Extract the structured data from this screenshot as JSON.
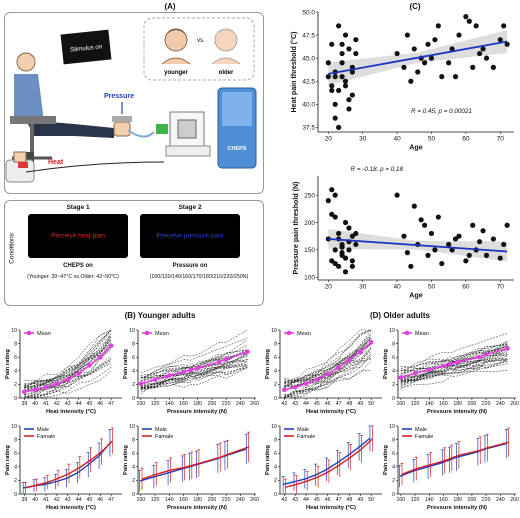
{
  "panel_labels": {
    "a": "(A)",
    "b": "(B) Younger adults",
    "c": "(C)",
    "d": "(D) Older adults"
  },
  "panel_a": {
    "stimulus_screen": "Stimulus on",
    "younger": "younger",
    "vs": "vs.",
    "older": "older",
    "pressure": "Pressure",
    "heat": "Heat",
    "device": "CHEPS",
    "conditions": "Conditions",
    "stage1": {
      "title": "Stage 1",
      "screen": "Perceive heat pain",
      "device": "CHEPS on"
    },
    "stage2": {
      "title": "Stage 2",
      "screen": "Perceive pressure pain",
      "device": "Pressure on"
    },
    "heat_range": "(Younger: 39~47°C vs.Older: 42~50°C)",
    "pressure_range": "(100/120/140/160/170/180/210/220/250N)"
  },
  "colors": {
    "mean": "#e040e0",
    "male": "#1f3fbf",
    "female": "#d42020",
    "fit": "#1a35c0"
  },
  "chart_data": [
    {
      "id": "c-heat",
      "type": "scatter",
      "ylabel": "Heat pain threshold (°C)",
      "xlabel": "Age",
      "xlim": [
        17,
        74
      ],
      "ylim": [
        37,
        50
      ],
      "xticks": [
        20,
        30,
        40,
        50,
        60,
        70
      ],
      "yticks": [
        37.5,
        40.0,
        42.5,
        45.0,
        47.5,
        50.0
      ],
      "x": [
        20,
        21,
        21,
        22,
        22,
        23,
        23,
        24,
        24,
        25,
        25,
        26,
        26,
        27,
        27,
        28,
        20,
        22,
        23,
        24,
        21,
        25,
        26,
        27,
        28,
        22,
        24,
        40,
        42,
        43,
        45,
        46,
        48,
        49,
        50,
        52,
        53,
        55,
        56,
        58,
        60,
        62,
        63,
        65,
        66,
        68,
        70,
        71,
        72,
        44,
        47,
        51,
        57,
        61,
        64
      ],
      "y": [
        44.5,
        46.5,
        42.0,
        40.0,
        43.5,
        48.5,
        41.5,
        45.5,
        43.0,
        47.5,
        42.5,
        39.5,
        46.0,
        41.0,
        44.0,
        45.5,
        43.0,
        38.5,
        37.5,
        44.5,
        41.5,
        42.0,
        40.5,
        43.5,
        47.0,
        43.0,
        46.5,
        45.5,
        44.0,
        47.5,
        46.0,
        43.5,
        44.5,
        46.5,
        45.0,
        48.5,
        43.0,
        44.5,
        46.0,
        47.5,
        49.5,
        44.0,
        48.5,
        46.0,
        45.0,
        44.0,
        47.0,
        48.5,
        46.5,
        42.5,
        45.0,
        47.0,
        43.0,
        49.0,
        45.5
      ],
      "fit": {
        "x": [
          20,
          72
        ],
        "y": [
          43.3,
          46.8
        ]
      },
      "annotation": "R = 0.45, p = 0.00021"
    },
    {
      "id": "c-press",
      "type": "scatter",
      "ylabel": "Pressure pain threshold (N)",
      "xlabel": "Age",
      "xlim": [
        17,
        74
      ],
      "ylim": [
        95,
        285
      ],
      "xticks": [
        20,
        30,
        40,
        50,
        60,
        70
      ],
      "yticks": [
        100,
        150,
        200,
        250
      ],
      "x": [
        20,
        21,
        21,
        22,
        22,
        23,
        23,
        24,
        24,
        25,
        25,
        26,
        26,
        27,
        27,
        28,
        20,
        22,
        23,
        24,
        21,
        25,
        26,
        27,
        28,
        22,
        24,
        40,
        42,
        43,
        45,
        46,
        48,
        49,
        50,
        52,
        53,
        55,
        56,
        58,
        60,
        62,
        63,
        65,
        66,
        68,
        70,
        71,
        72,
        44,
        47,
        51,
        57,
        61,
        64
      ],
      "y": [
        170,
        260,
        130,
        150,
        210,
        180,
        120,
        160,
        140,
        200,
        110,
        190,
        150,
        130,
        175,
        160,
        240,
        125,
        170,
        145,
        215,
        135,
        165,
        120,
        180,
        250,
        155,
        250,
        175,
        145,
        230,
        160,
        195,
        140,
        180,
        210,
        125,
        160,
        150,
        175,
        130,
        195,
        150,
        185,
        140,
        170,
        135,
        160,
        195,
        120,
        205,
        150,
        170,
        140,
        165
      ],
      "fit": {
        "x": [
          20,
          72
        ],
        "y": [
          170,
          147
        ]
      },
      "annotation": "R = -0.18, p = 0.18"
    },
    {
      "id": "b-heat",
      "type": "line",
      "xlabel": "Heat intensity (°C)",
      "ylabel": "Pain rating",
      "x": [
        39,
        40,
        41,
        42,
        43,
        44,
        45,
        46,
        47
      ],
      "xlim": [
        38.6,
        48
      ],
      "ylim": [
        0,
        10
      ],
      "yticks": [
        0,
        2,
        4,
        6,
        8,
        10
      ],
      "series": [
        {
          "name": "Mean",
          "values": [
            0.9,
            1.2,
            1.6,
            2.1,
            2.7,
            3.6,
            4.8,
            6.0,
            7.7
          ]
        }
      ],
      "individuals": 30,
      "legend": "top-left"
    },
    {
      "id": "b-press",
      "type": "line",
      "xlabel": "Pressure intensity (N)",
      "ylabel": "Pain rating",
      "x": [
        100,
        120,
        140,
        160,
        170,
        180,
        210,
        220,
        250
      ],
      "xlim": [
        96,
        262
      ],
      "ylim": [
        0,
        10
      ],
      "yticks": [
        0,
        2,
        4,
        6,
        8,
        10
      ],
      "xticks": [
        100,
        120,
        140,
        160,
        180,
        200,
        220,
        240,
        260
      ],
      "series": [
        {
          "name": "Mean",
          "values": [
            2.1,
            2.7,
            3.3,
            3.8,
            4.1,
            4.4,
            5.3,
            5.7,
            6.8
          ]
        }
      ],
      "individuals": 30,
      "legend": "top-left"
    },
    {
      "id": "d-heat",
      "type": "line",
      "xlabel": "Heat intensity (°C)",
      "ylabel": "Pain rating",
      "x": [
        42,
        43,
        44,
        45,
        46,
        47,
        48,
        49,
        50
      ],
      "xlim": [
        41.6,
        51
      ],
      "ylim": [
        0,
        10
      ],
      "yticks": [
        0,
        2,
        4,
        6,
        8,
        10
      ],
      "series": [
        {
          "name": "Mean",
          "values": [
            1.2,
            1.6,
            2.1,
            2.7,
            3.5,
            4.5,
            5.6,
            6.8,
            8.2
          ]
        }
      ],
      "individuals": 30,
      "legend": "top-left"
    },
    {
      "id": "d-press",
      "type": "line",
      "xlabel": "Pressure intensity (N)",
      "ylabel": "Pain rating",
      "x": [
        100,
        120,
        140,
        160,
        170,
        180,
        210,
        220,
        250
      ],
      "xlim": [
        96,
        262
      ],
      "ylim": [
        0,
        10
      ],
      "yticks": [
        0,
        2,
        4,
        6,
        8,
        10
      ],
      "xticks": [
        100,
        120,
        140,
        160,
        180,
        200,
        220,
        240,
        260
      ],
      "series": [
        {
          "name": "Mean",
          "values": [
            3.0,
            3.6,
            4.2,
            4.7,
            5.0,
            5.3,
            6.0,
            6.4,
            7.3
          ]
        }
      ],
      "individuals": 30,
      "legend": "top-left"
    },
    {
      "id": "b-heat-sex",
      "type": "line",
      "xlabel": "Heat intensity (°C)",
      "ylabel": "Pain rating",
      "x": [
        39,
        40,
        41,
        42,
        43,
        44,
        45,
        46,
        47
      ],
      "xlim": [
        38.6,
        48
      ],
      "ylim": [
        0,
        10
      ],
      "yticks": [
        0,
        2,
        4,
        6,
        8,
        10
      ],
      "series": [
        {
          "name": "Male",
          "values": [
            0.9,
            1.2,
            1.4,
            1.8,
            2.3,
            3.1,
            4.3,
            5.6,
            7.5
          ],
          "err": [
            0.8,
            0.9,
            1.0,
            1.1,
            1.3,
            1.5,
            1.8,
            1.9,
            2.0
          ]
        },
        {
          "name": "Famale",
          "values": [
            0.9,
            1.3,
            1.7,
            2.3,
            3.0,
            3.9,
            5.0,
            6.2,
            7.8
          ],
          "err": [
            0.8,
            0.9,
            1.0,
            1.2,
            1.4,
            1.6,
            1.8,
            1.9,
            1.9
          ]
        }
      ],
      "legend": "top-left"
    },
    {
      "id": "b-press-sex",
      "type": "line",
      "xlabel": "Pressure intensity (N)",
      "ylabel": "Pain rating",
      "x": [
        100,
        120,
        140,
        160,
        170,
        180,
        210,
        220,
        250
      ],
      "xlim": [
        96,
        262
      ],
      "ylim": [
        0,
        10
      ],
      "yticks": [
        0,
        2,
        4,
        6,
        8,
        10
      ],
      "xticks": [
        100,
        120,
        140,
        160,
        180,
        200,
        220,
        240,
        260
      ],
      "series": [
        {
          "name": "Male",
          "values": [
            1.9,
            2.5,
            3.1,
            3.7,
            4.0,
            4.3,
            5.2,
            5.6,
            6.6
          ],
          "err": [
            1.6,
            1.7,
            1.8,
            1.9,
            2.0,
            2.0,
            2.1,
            2.1,
            2.2
          ]
        },
        {
          "name": "Famale",
          "values": [
            2.2,
            2.9,
            3.5,
            3.9,
            4.2,
            4.5,
            5.4,
            5.8,
            6.9
          ],
          "err": [
            1.6,
            1.7,
            1.8,
            1.9,
            2.0,
            2.0,
            2.1,
            2.1,
            2.2
          ]
        }
      ],
      "legend": "top-left"
    },
    {
      "id": "d-heat-sex",
      "type": "line",
      "xlabel": "Heat intensity (°C)",
      "ylabel": "Pain rating",
      "x": [
        42,
        43,
        44,
        45,
        46,
        47,
        48,
        49,
        50
      ],
      "xlim": [
        41.6,
        51
      ],
      "ylim": [
        0,
        10
      ],
      "yticks": [
        0,
        2,
        4,
        6,
        8,
        10
      ],
      "series": [
        {
          "name": "Male",
          "values": [
            1.4,
            1.8,
            2.2,
            2.8,
            3.6,
            4.6,
            5.7,
            6.9,
            8.2
          ],
          "err": [
            1.2,
            1.3,
            1.4,
            1.6,
            1.7,
            1.8,
            1.9,
            2.0,
            1.9
          ]
        },
        {
          "name": "Famale",
          "values": [
            1.0,
            1.4,
            1.9,
            2.5,
            3.3,
            4.3,
            5.4,
            6.6,
            8.1
          ],
          "err": [
            1.2,
            1.3,
            1.4,
            1.6,
            1.7,
            1.8,
            1.9,
            2.0,
            1.9
          ]
        }
      ],
      "legend": "top-left"
    },
    {
      "id": "d-press-sex",
      "type": "line",
      "xlabel": "Pressure intensity (N)",
      "ylabel": "Pain rating",
      "x": [
        100,
        120,
        140,
        160,
        170,
        180,
        210,
        220,
        250
      ],
      "xlim": [
        96,
        262
      ],
      "ylim": [
        0,
        10
      ],
      "yticks": [
        0,
        2,
        4,
        6,
        8,
        10
      ],
      "xticks": [
        100,
        120,
        140,
        160,
        180,
        200,
        220,
        240,
        260
      ],
      "series": [
        {
          "name": "Male",
          "values": [
            2.6,
            3.4,
            4.0,
            4.6,
            5.0,
            5.4,
            6.2,
            6.6,
            7.4
          ],
          "err": [
            1.6,
            1.7,
            1.8,
            1.9,
            1.9,
            2.0,
            2.0,
            2.0,
            2.1
          ]
        },
        {
          "name": "Famale",
          "values": [
            2.9,
            3.7,
            4.3,
            4.9,
            5.3,
            5.7,
            6.4,
            6.8,
            7.6
          ],
          "err": [
            1.6,
            1.7,
            1.8,
            1.9,
            1.9,
            2.0,
            2.0,
            2.0,
            2.1
          ]
        }
      ],
      "legend": "top-left"
    }
  ]
}
